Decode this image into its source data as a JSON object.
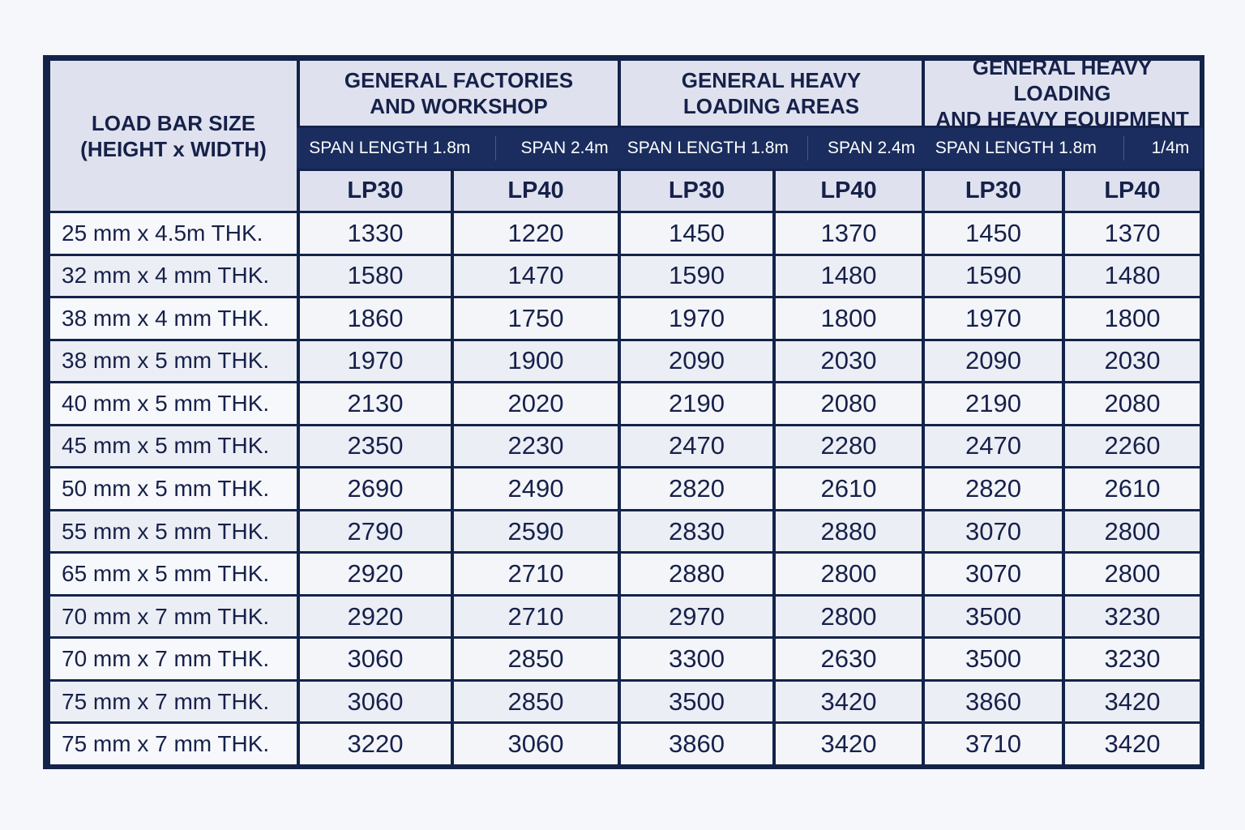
{
  "header": {
    "row_label": [
      "LOAD BAR SIZE",
      "(HEIGHT x WIDTH)"
    ],
    "groups": [
      {
        "title": [
          "GENERAL FACTORIES",
          "AND WORKSHOP"
        ],
        "spans": [
          "SPAN LENGTH 1.8m",
          "SPAN 2.4m"
        ],
        "cols": [
          "LP30",
          "LP40"
        ]
      },
      {
        "title": [
          "GENERAL HEAVY",
          "LOADING AREAS"
        ],
        "spans": [
          "SPAN LENGTH 1.8m",
          "SPAN 2.4m"
        ],
        "cols": [
          "LP30",
          "LP40"
        ]
      },
      {
        "title": [
          "GENERAL HEAVY LOADING",
          "AND HEAVY EQUIPMENT"
        ],
        "spans": [
          "SPAN LENGTH 1.8m",
          "1/4m"
        ],
        "cols": [
          "LP30",
          "LP40"
        ]
      }
    ]
  },
  "rows": [
    {
      "label": "25 mm x 4.5m THK.",
      "values": [
        "1330",
        "1220",
        "1450",
        "1370",
        "1450",
        "1370"
      ]
    },
    {
      "label": "32 mm x 4 mm THK.",
      "values": [
        "1580",
        "1470",
        "1590",
        "1480",
        "1590",
        "1480"
      ]
    },
    {
      "label": "38 mm x 4 mm THK.",
      "values": [
        "1860",
        "1750",
        "1970",
        "1800",
        "1970",
        "1800"
      ]
    },
    {
      "label": "38 mm x 5 mm THK.",
      "values": [
        "1970",
        "1900",
        "2090",
        "2030",
        "2090",
        "2030"
      ]
    },
    {
      "label": "40 mm x 5 mm THK.",
      "values": [
        "2130",
        "2020",
        "2190",
        "2080",
        "2190",
        "2080"
      ]
    },
    {
      "label": "45 mm x 5 mm THK.",
      "values": [
        "2350",
        "2230",
        "2470",
        "2280",
        "2470",
        "2260"
      ]
    },
    {
      "label": "50 mm x 5 mm THK.",
      "values": [
        "2690",
        "2490",
        "2820",
        "2610",
        "2820",
        "2610"
      ]
    },
    {
      "label": "55 mm x 5 mm THK.",
      "values": [
        "2790",
        "2590",
        "2830",
        "2880",
        "3070",
        "2800"
      ]
    },
    {
      "label": "65 mm x 5 mm THK.",
      "values": [
        "2920",
        "2710",
        "2880",
        "2800",
        "3070",
        "2800"
      ]
    },
    {
      "label": "70 mm x 7 mm THK.",
      "values": [
        "2920",
        "2710",
        "2970",
        "2800",
        "3500",
        "3230"
      ]
    },
    {
      "label": "70 mm x 7 mm THK.",
      "values": [
        "3060",
        "2850",
        "3300",
        "2630",
        "3500",
        "3230"
      ]
    },
    {
      "label": "75 mm x 7 mm THK.",
      "values": [
        "3060",
        "2850",
        "3500",
        "3420",
        "3860",
        "3420"
      ]
    },
    {
      "label": "75 mm x 7 mm THK.",
      "values": [
        "3220",
        "3060",
        "3860",
        "3420",
        "3710",
        "3420"
      ]
    }
  ],
  "colors": {
    "border": "#13234a",
    "span_row": "#1a2d5e",
    "header_bg": "#dfe2ee",
    "text": "#16214a"
  }
}
